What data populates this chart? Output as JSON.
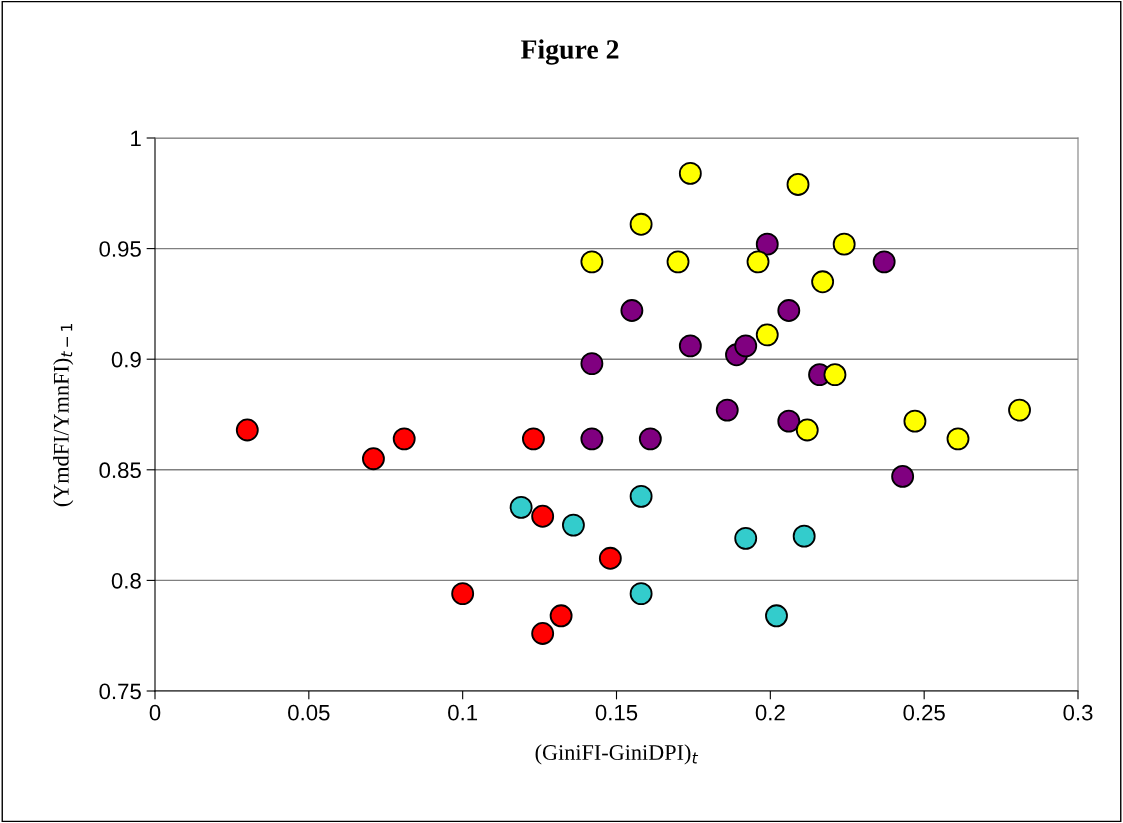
{
  "chart_data": {
    "type": "scatter",
    "title": "Figure 2",
    "xlabel": "(GiniFI-GiniDPI)$_{t}$",
    "ylabel": "(YmdFI/YmnFI)$_{t−1}$",
    "xlim": [
      0,
      0.3
    ],
    "xticks": [
      0,
      0.05,
      0.1,
      0.15,
      0.2,
      0.25,
      0.3
    ],
    "ylim": [
      0.75,
      1
    ],
    "yticks": [
      0.75,
      0.8,
      0.85,
      0.9,
      0.95,
      1
    ],
    "grid": "y",
    "marker": "circle",
    "series": [
      {
        "color": "#ff0000",
        "x": [
          0.03,
          0.071,
          0.081,
          0.1,
          0.123,
          0.126,
          0.126,
          0.132,
          0.148
        ],
        "values": [
          0.868,
          0.855,
          0.864,
          0.794,
          0.864,
          0.829,
          0.776,
          0.784,
          0.81
        ]
      },
      {
        "color": "#33cccc",
        "x": [
          0.119,
          0.136,
          0.158,
          0.158,
          0.192,
          0.211,
          0.202
        ],
        "values": [
          0.833,
          0.825,
          0.838,
          0.794,
          0.819,
          0.82,
          0.784
        ]
      },
      {
        "color": "#800080",
        "x": [
          0.142,
          0.142,
          0.155,
          0.161,
          0.174,
          0.186,
          0.189,
          0.192,
          0.199,
          0.206,
          0.206,
          0.216,
          0.237,
          0.243
        ],
        "values": [
          0.898,
          0.864,
          0.922,
          0.864,
          0.906,
          0.877,
          0.902,
          0.906,
          0.952,
          0.922,
          0.872,
          0.893,
          0.944,
          0.847
        ]
      },
      {
        "color": "#ffff00",
        "x": [
          0.142,
          0.158,
          0.174,
          0.17,
          0.196,
          0.199,
          0.209,
          0.217,
          0.224,
          0.221,
          0.212,
          0.247,
          0.261,
          0.281
        ],
        "values": [
          0.944,
          0.961,
          0.984,
          0.944,
          0.944,
          0.911,
          0.979,
          0.935,
          0.952,
          0.893,
          0.868,
          0.872,
          0.864,
          0.877
        ]
      }
    ]
  }
}
